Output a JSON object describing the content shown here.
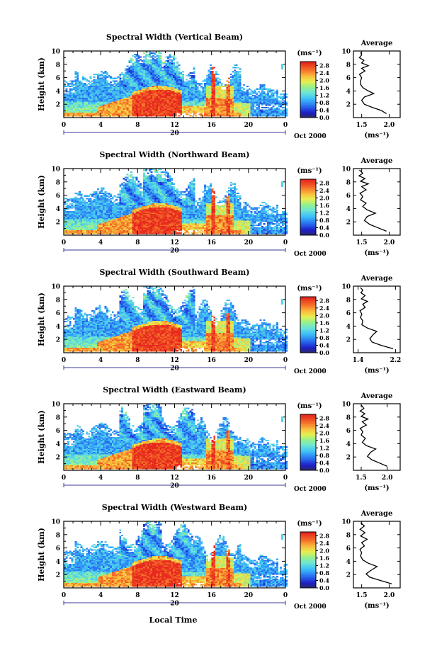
{
  "figure": {
    "xlabel": "Local Time",
    "date_label": "Oct 2000",
    "day_label": "20",
    "ylabel": "Height (km)",
    "colorbar_unit": "(ms⁻¹)",
    "average_title": "Average",
    "average_xlabel": "(ms⁻¹)"
  },
  "chart_data": [
    {
      "type": "heatmap",
      "title": "Spectral Width (Vertical Beam)",
      "xlabel": "",
      "ylabel": "Height (km)",
      "x_ticks": [
        "0",
        "4",
        "8",
        "12",
        "16",
        "20",
        "0"
      ],
      "xlim": [
        0,
        24
      ],
      "ylim": [
        0,
        10
      ],
      "y_ticks": [
        "2",
        "4",
        "6",
        "8",
        "10"
      ],
      "colorbar": {
        "label": "(ms⁻¹)",
        "ticks": [
          "0.0",
          "0.4",
          "0.8",
          "1.2",
          "1.6",
          "2.0",
          "2.4",
          "2.8"
        ],
        "range": [
          0.0,
          3.0
        ]
      },
      "average": {
        "title": "Average",
        "xlabel": "(ms⁻¹)",
        "x_ticks": [
          "1.5",
          "2.0"
        ],
        "xlim": [
          1.35,
          2.2
        ],
        "y_ticks": [
          "2",
          "4",
          "6",
          "8",
          "10"
        ],
        "ylim": [
          0,
          10
        ],
        "profile": [
          [
            1.95,
            0.6
          ],
          [
            1.85,
            1.1
          ],
          [
            1.7,
            1.5
          ],
          [
            1.55,
            2.0
          ],
          [
            1.5,
            2.6
          ],
          [
            1.55,
            3.1
          ],
          [
            1.72,
            3.6
          ],
          [
            1.6,
            4.1
          ],
          [
            1.52,
            4.5
          ],
          [
            1.48,
            5.0
          ],
          [
            1.48,
            5.5
          ],
          [
            1.5,
            6.0
          ],
          [
            1.46,
            6.5
          ],
          [
            1.56,
            7.0
          ],
          [
            1.5,
            7.4
          ],
          [
            1.62,
            7.8
          ],
          [
            1.5,
            8.2
          ],
          [
            1.54,
            8.6
          ],
          [
            1.46,
            9.0
          ],
          [
            1.5,
            9.4
          ],
          [
            1.48,
            9.8
          ]
        ]
      }
    },
    {
      "type": "heatmap",
      "title": "Spectral Width (Northward Beam)",
      "xlabel": "",
      "ylabel": "Height (km)",
      "x_ticks": [
        "0",
        "4",
        "8",
        "12",
        "16",
        "20",
        "0"
      ],
      "xlim": [
        0,
        24
      ],
      "ylim": [
        0,
        10
      ],
      "y_ticks": [
        "2",
        "4",
        "6",
        "8",
        "10"
      ],
      "colorbar": {
        "label": "(ms⁻¹)",
        "ticks": [
          "0.0",
          "0.4",
          "0.8",
          "1.2",
          "1.6",
          "2.0",
          "2.4",
          "2.8"
        ],
        "range": [
          0.0,
          3.0
        ]
      },
      "average": {
        "title": "Average",
        "xlabel": "(ms⁻¹)",
        "x_ticks": [
          "1.5",
          "2.0"
        ],
        "xlim": [
          1.35,
          2.2
        ],
        "y_ticks": [
          "2",
          "4",
          "6",
          "8",
          "10"
        ],
        "ylim": [
          0,
          10
        ],
        "profile": [
          [
            1.95,
            0.6
          ],
          [
            1.8,
            1.1
          ],
          [
            1.65,
            1.6
          ],
          [
            1.55,
            2.2
          ],
          [
            1.6,
            2.8
          ],
          [
            1.75,
            3.3
          ],
          [
            1.6,
            3.8
          ],
          [
            1.52,
            4.3
          ],
          [
            1.58,
            4.8
          ],
          [
            1.48,
            5.3
          ],
          [
            1.52,
            5.8
          ],
          [
            1.47,
            6.3
          ],
          [
            1.58,
            6.8
          ],
          [
            1.5,
            7.3
          ],
          [
            1.62,
            7.7
          ],
          [
            1.48,
            8.1
          ],
          [
            1.56,
            8.5
          ],
          [
            1.45,
            8.9
          ],
          [
            1.52,
            9.3
          ],
          [
            1.46,
            9.8
          ]
        ]
      }
    },
    {
      "type": "heatmap",
      "title": "Spectral Width (Southward Beam)",
      "xlabel": "",
      "ylabel": "Height (km)",
      "x_ticks": [
        "0",
        "4",
        "8",
        "12",
        "16",
        "20",
        "0"
      ],
      "xlim": [
        0,
        24
      ],
      "ylim": [
        0,
        10
      ],
      "y_ticks": [
        "2",
        "4",
        "6",
        "8",
        "10"
      ],
      "colorbar": {
        "label": "(ms⁻¹)",
        "ticks": [
          "0.0",
          "0.4",
          "0.8",
          "1.2",
          "1.6",
          "2.0",
          "2.4",
          "2.8"
        ],
        "range": [
          0.0,
          3.0
        ]
      },
      "average": {
        "title": "Average",
        "xlabel": "(ms⁻¹)",
        "x_ticks": [
          "1.4",
          "2.2"
        ],
        "xlim": [
          1.3,
          2.3
        ],
        "y_ticks": [
          "2",
          "4",
          "6",
          "8",
          "10"
        ],
        "ylim": [
          0,
          10
        ],
        "profile": [
          [
            2.15,
            0.6
          ],
          [
            1.9,
            1.1
          ],
          [
            1.7,
            1.6
          ],
          [
            1.65,
            2.1
          ],
          [
            1.72,
            2.7
          ],
          [
            1.8,
            3.2
          ],
          [
            1.6,
            3.7
          ],
          [
            1.48,
            4.2
          ],
          [
            1.5,
            4.8
          ],
          [
            1.45,
            5.3
          ],
          [
            1.48,
            5.8
          ],
          [
            1.44,
            6.3
          ],
          [
            1.55,
            6.8
          ],
          [
            1.5,
            7.3
          ],
          [
            1.6,
            7.7
          ],
          [
            1.47,
            8.1
          ],
          [
            1.55,
            8.6
          ],
          [
            1.46,
            9.0
          ],
          [
            1.5,
            9.4
          ],
          [
            1.45,
            9.8
          ]
        ]
      }
    },
    {
      "type": "heatmap",
      "title": "Spectral Width (Eastward Beam)",
      "xlabel": "",
      "ylabel": "Height (km)",
      "x_ticks": [
        "0",
        "4",
        "8",
        "12",
        "16",
        "20",
        "0"
      ],
      "xlim": [
        0,
        24
      ],
      "ylim": [
        0,
        10
      ],
      "y_ticks": [
        "2",
        "4",
        "6",
        "8",
        "10"
      ],
      "colorbar": {
        "label": "(ms⁻¹)",
        "ticks": [
          "0.0",
          "0.4",
          "0.8",
          "1.2",
          "1.6",
          "2.0",
          "2.4",
          "2.8"
        ],
        "range": [
          0.0,
          3.0
        ]
      },
      "average": {
        "title": "Average",
        "xlabel": "(ms⁻¹)",
        "x_ticks": [
          "1.5",
          "2.0"
        ],
        "xlim": [
          1.35,
          2.25
        ],
        "y_ticks": [
          "2",
          "4",
          "6",
          "8",
          "10"
        ],
        "ylim": [
          0,
          10
        ],
        "profile": [
          [
            2.0,
            0.6
          ],
          [
            1.85,
            1.1
          ],
          [
            1.7,
            1.6
          ],
          [
            1.62,
            2.1
          ],
          [
            1.68,
            2.7
          ],
          [
            1.78,
            3.2
          ],
          [
            1.6,
            3.7
          ],
          [
            1.52,
            4.2
          ],
          [
            1.58,
            4.8
          ],
          [
            1.5,
            5.3
          ],
          [
            1.53,
            5.8
          ],
          [
            1.48,
            6.3
          ],
          [
            1.6,
            6.8
          ],
          [
            1.52,
            7.3
          ],
          [
            1.63,
            7.7
          ],
          [
            1.5,
            8.1
          ],
          [
            1.57,
            8.5
          ],
          [
            1.48,
            8.9
          ],
          [
            1.55,
            9.3
          ],
          [
            1.5,
            9.8
          ]
        ]
      }
    },
    {
      "type": "heatmap",
      "title": "Spectral Width (Westward Beam)",
      "xlabel": "Local Time",
      "ylabel": "Height (km)",
      "x_ticks": [
        "0",
        "4",
        "8",
        "12",
        "16",
        "20",
        "0"
      ],
      "xlim": [
        0,
        24
      ],
      "ylim": [
        0,
        10
      ],
      "y_ticks": [
        "2",
        "4",
        "6",
        "8",
        "10"
      ],
      "colorbar": {
        "label": "(ms⁻¹)",
        "ticks": [
          "0.0",
          "0.4",
          "0.8",
          "1.2",
          "1.6",
          "2.0",
          "2.4",
          "2.8"
        ],
        "range": [
          0.0,
          3.0
        ]
      },
      "average": {
        "title": "Average",
        "xlabel": "(ms⁻¹)",
        "x_ticks": [
          "1.5",
          "2.0"
        ],
        "xlim": [
          1.35,
          2.2
        ],
        "y_ticks": [
          "2",
          "4",
          "6",
          "8",
          "10"
        ],
        "ylim": [
          0,
          10
        ],
        "profile": [
          [
            2.05,
            0.6
          ],
          [
            1.85,
            1.1
          ],
          [
            1.65,
            1.6
          ],
          [
            1.58,
            2.1
          ],
          [
            1.66,
            2.6
          ],
          [
            1.78,
            3.2
          ],
          [
            1.62,
            3.7
          ],
          [
            1.52,
            4.2
          ],
          [
            1.48,
            4.8
          ],
          [
            1.5,
            5.3
          ],
          [
            1.47,
            5.8
          ],
          [
            1.55,
            6.3
          ],
          [
            1.5,
            6.8
          ],
          [
            1.6,
            7.3
          ],
          [
            1.48,
            7.8
          ],
          [
            1.56,
            8.3
          ],
          [
            1.47,
            8.8
          ],
          [
            1.55,
            9.3
          ],
          [
            1.48,
            9.8
          ]
        ]
      }
    }
  ]
}
